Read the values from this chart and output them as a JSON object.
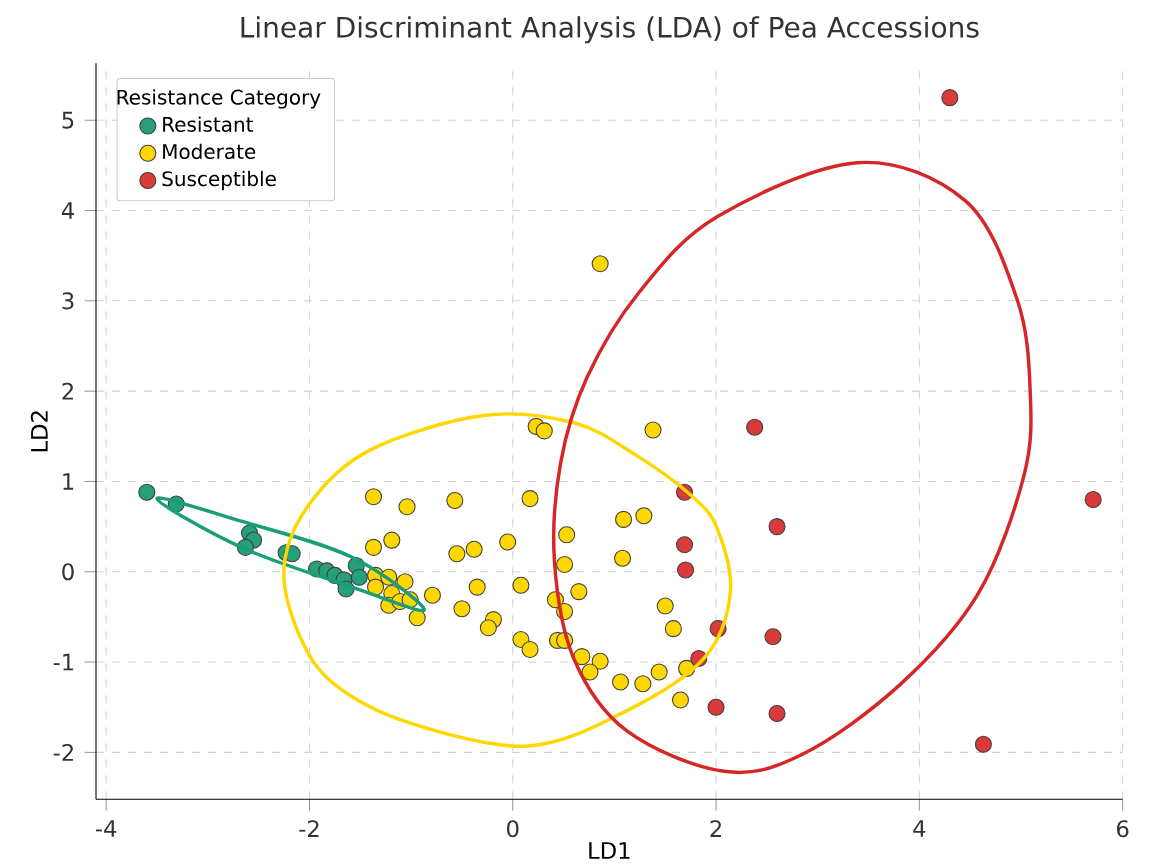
{
  "chart_data": {
    "type": "scatter",
    "title": "Linear Discriminant Analysis (LDA) of Pea Accessions",
    "xlabel": "LD1",
    "ylabel": "LD2",
    "legend_title": "Resistance Category",
    "xlim": [
      -4.1,
      6
    ],
    "ylim": [
      -2.52,
      5.63
    ],
    "xticks": [
      -4,
      -2,
      0,
      2,
      4,
      6
    ],
    "yticks": [
      -2,
      -1,
      0,
      1,
      2,
      3,
      4,
      5
    ],
    "grid": true,
    "legend": "top left",
    "marker": "circle",
    "series": [
      {
        "name": "Resistant",
        "color": "#26a07a",
        "x": [
          -3.6,
          -3.31,
          -2.59,
          -2.55,
          -2.63,
          -2.23,
          -2.17,
          -1.93,
          -1.83,
          -1.75,
          -1.66,
          -1.64,
          -1.54,
          -1.51
        ],
        "values": [
          0.88,
          0.75,
          0.43,
          0.35,
          0.27,
          0.21,
          0.2,
          0.03,
          0.01,
          -0.04,
          -0.09,
          -0.19,
          0.07,
          -0.06
        ]
      },
      {
        "name": "Moderate",
        "color": "#ffd700",
        "x": [
          -1.37,
          -1.04,
          -0.57,
          0.17,
          -1.19,
          -1.37,
          -0.55,
          -0.38,
          -0.05,
          -1.35,
          -1.35,
          -1.22,
          -1.06,
          -1.19,
          -1.22,
          -1.11,
          -1.01,
          -0.79,
          -0.94,
          -0.5,
          -0.35,
          -0.19,
          -0.24,
          0.08,
          0.08,
          0.17,
          0.23,
          0.31,
          1.38,
          1.09,
          1.29,
          0.53,
          1.08,
          0.51,
          0.65,
          0.42,
          0.51,
          1.5,
          1.58,
          0.44,
          0.51,
          0.68,
          0.86,
          0.76,
          1.06,
          1.28,
          1.44,
          1.71,
          1.65,
          0.86
        ],
        "values": [
          0.83,
          0.72,
          0.79,
          0.81,
          0.35,
          0.27,
          0.2,
          0.25,
          0.33,
          -0.04,
          -0.17,
          -0.06,
          -0.11,
          -0.24,
          -0.37,
          -0.33,
          -0.31,
          -0.26,
          -0.51,
          -0.41,
          -0.17,
          -0.53,
          -0.62,
          -0.15,
          -0.75,
          -0.86,
          1.61,
          1.56,
          1.57,
          0.58,
          0.62,
          0.41,
          0.15,
          0.08,
          -0.22,
          -0.31,
          -0.44,
          -0.38,
          -0.63,
          -0.76,
          -0.76,
          -0.94,
          -0.99,
          -1.11,
          -1.22,
          -1.24,
          -1.11,
          -1.07,
          -1.42,
          3.41
        ]
      },
      {
        "name": "Susceptible",
        "color": "#d93a3a",
        "x": [
          4.3,
          2.38,
          5.71,
          1.69,
          2.6,
          1.69,
          1.7,
          2.02,
          2.56,
          1.83,
          2.0,
          2.6,
          4.63
        ],
        "values": [
          5.25,
          1.6,
          0.8,
          0.88,
          0.5,
          0.3,
          0.02,
          -0.63,
          -0.72,
          -0.96,
          -1.5,
          -1.57,
          -1.91
        ]
      }
    ]
  }
}
